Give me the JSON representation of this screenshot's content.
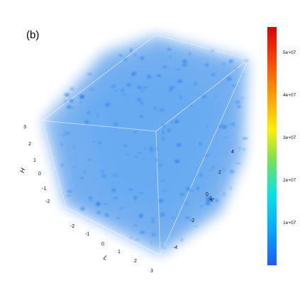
{
  "panel_label": "(b)",
  "chart_data": {
    "type": "volume",
    "title": "",
    "axes": {
      "H": {
        "label": "H",
        "ticks": [
          "-2",
          "-1",
          "0",
          "1",
          "2",
          "3"
        ],
        "range": [
          -2.5,
          3.5
        ]
      },
      "L": {
        "label": "L",
        "ticks": [
          "-2",
          "-1",
          "0",
          "1",
          "2",
          "3"
        ],
        "range": [
          -2.5,
          3.5
        ]
      },
      "K": {
        "label": "K",
        "ticks": [
          "-4",
          "-2",
          "0",
          "2",
          "4"
        ],
        "range": [
          -5,
          5
        ]
      }
    },
    "colorbar": {
      "min": 0,
      "max": 56000000,
      "ticks": [
        "1e+07",
        "2e+07",
        "3e+07",
        "4e+07",
        "5e+07"
      ],
      "tick_values": [
        10000000,
        20000000,
        30000000,
        40000000,
        50000000
      ],
      "colormap": [
        "#1a5cff",
        "#00aaff",
        "#00e5e5",
        "#7fe34a",
        "#ffee00",
        "#ff9900",
        "#ff4400",
        "#e00000"
      ]
    },
    "volume_color": "#3b8be6",
    "grid": false
  }
}
